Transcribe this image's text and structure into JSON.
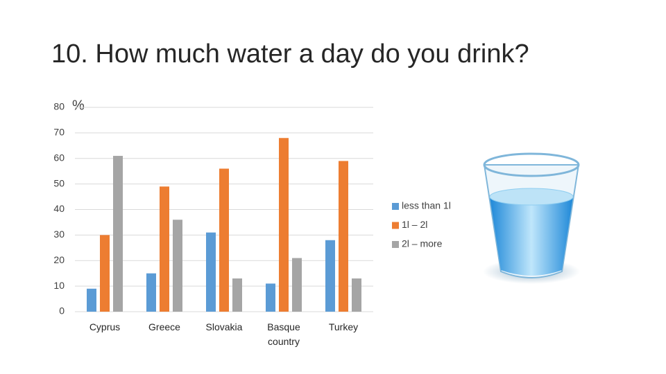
{
  "chart_data": {
    "type": "bar",
    "title": "10. How much water a day do you drink?",
    "y_unit": "%",
    "categories": [
      "Cyprus",
      "Greece",
      "Slovakia",
      "Basque country",
      "Turkey"
    ],
    "series": [
      {
        "name": "less than 1l",
        "color": "#5b9bd5",
        "values": [
          9,
          15,
          31,
          11,
          28
        ]
      },
      {
        "name": "1l – 2l",
        "color": "#ed7d31",
        "values": [
          30,
          49,
          56,
          68,
          59
        ]
      },
      {
        "name": "2l – more",
        "color": "#a5a5a5",
        "values": [
          61,
          36,
          13,
          21,
          13
        ]
      }
    ],
    "ylim": [
      0,
      80
    ],
    "yticks": [
      0,
      10,
      20,
      30,
      40,
      50,
      60,
      70,
      80
    ],
    "grid": true,
    "legend": "right"
  }
}
